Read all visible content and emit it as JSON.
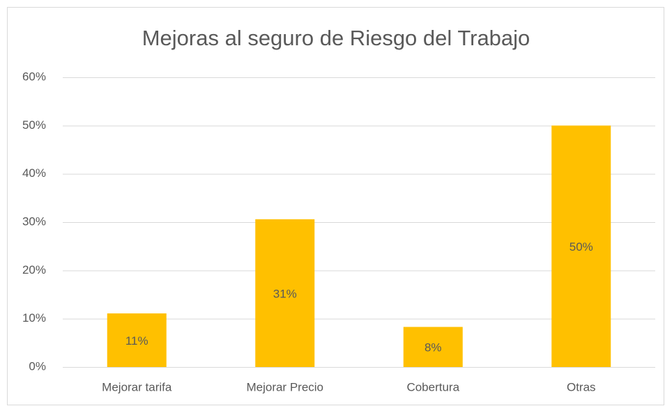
{
  "chart_data": {
    "type": "bar",
    "title": "Mejoras al seguro de Riesgo del Trabajo",
    "categories": [
      "Mejorar tarifa",
      "Mejorar Precio",
      "Cobertura",
      "Otras"
    ],
    "values": [
      11.1,
      30.6,
      8.3,
      50
    ],
    "value_labels": [
      "11%",
      "31%",
      "8%",
      "50%"
    ],
    "color": "#ffc000",
    "ylim": [
      0,
      60
    ],
    "yticks": [
      {
        "value": 0,
        "label": "0%"
      },
      {
        "value": 10,
        "label": "10%"
      },
      {
        "value": 20,
        "label": "20%"
      },
      {
        "value": 30,
        "label": "30%"
      },
      {
        "value": 40,
        "label": "40%"
      },
      {
        "value": 50,
        "label": "50%"
      },
      {
        "value": 60,
        "label": "60%"
      }
    ],
    "grid": true
  }
}
